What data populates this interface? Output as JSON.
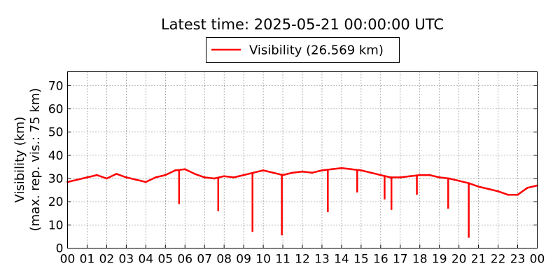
{
  "chart_data": {
    "type": "line",
    "title": "Latest time: 2025-05-21 00:00:00 UTC",
    "ylabel_line1": "Visibility (km)",
    "ylabel_line2": "(max. rep. vis.: 75 km)",
    "xlabel": "",
    "legend_position": "top-center",
    "grid": true,
    "ylim": [
      0,
      76
    ],
    "xlim": [
      0,
      24
    ],
    "x_ticks": [
      "00",
      "01",
      "02",
      "03",
      "04",
      "05",
      "06",
      "07",
      "08",
      "09",
      "10",
      "11",
      "12",
      "13",
      "14",
      "15",
      "16",
      "17",
      "18",
      "19",
      "20",
      "21",
      "22",
      "23",
      "00"
    ],
    "y_ticks": [
      0,
      10,
      20,
      30,
      40,
      50,
      60,
      70
    ],
    "series": [
      {
        "name": "Visibility (26.569 km)",
        "color": "#ff0000",
        "x": [
          0,
          0.5,
          1,
          1.5,
          2,
          2.5,
          3,
          3.5,
          4,
          4.5,
          5,
          5.5,
          6,
          6.5,
          7,
          7.5,
          8,
          8.5,
          9,
          9.5,
          10,
          10.5,
          11,
          11.5,
          12,
          12.5,
          13,
          13.5,
          14,
          14.5,
          15,
          15.5,
          16,
          16.5,
          17,
          17.5,
          18,
          18.5,
          19,
          19.5,
          20,
          20.5,
          21,
          21.5,
          22,
          22.5,
          23,
          23.5,
          24
        ],
        "y": [
          28.5,
          29.5,
          30.5,
          31.5,
          30,
          32,
          30.5,
          29.5,
          28.5,
          30.5,
          31.5,
          33.5,
          34,
          32,
          30.5,
          30,
          31,
          30.5,
          31.5,
          32.5,
          33.5,
          32.5,
          31.5,
          32.5,
          33,
          32.5,
          33.5,
          34,
          34.5,
          34,
          33.5,
          32.5,
          31.5,
          30.5,
          30.5,
          31,
          31.5,
          31.5,
          30.5,
          30,
          29,
          28,
          26.5,
          25.5,
          24.5,
          23,
          23,
          26,
          27
        ]
      }
    ],
    "dips": [
      {
        "x": 5.7,
        "y": 19
      },
      {
        "x": 7.7,
        "y": 16
      },
      {
        "x": 9.45,
        "y": 7
      },
      {
        "x": 10.95,
        "y": 5.5
      },
      {
        "x": 13.3,
        "y": 15.5
      },
      {
        "x": 14.8,
        "y": 24
      },
      {
        "x": 16.2,
        "y": 21
      },
      {
        "x": 16.55,
        "y": 16.5
      },
      {
        "x": 17.85,
        "y": 23
      },
      {
        "x": 19.45,
        "y": 17
      },
      {
        "x": 20.5,
        "y": 4.5
      }
    ]
  }
}
